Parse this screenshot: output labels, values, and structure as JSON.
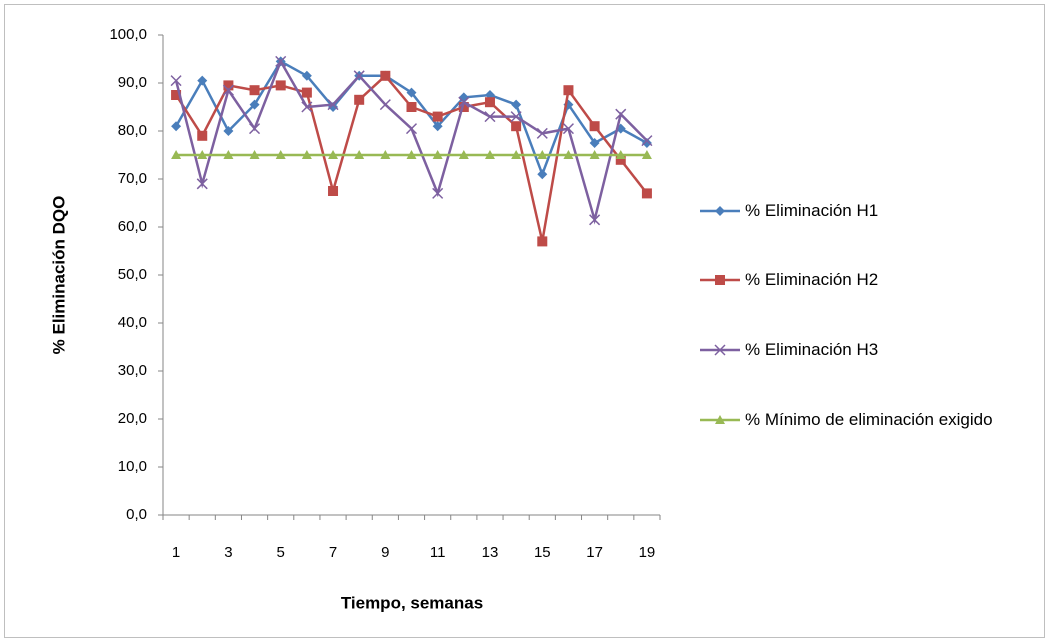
{
  "chart_data": {
    "type": "line",
    "x_label": "Tiempo, semanas",
    "y_label": "% Eliminación DQO",
    "categories": [
      "1",
      null,
      "3",
      null,
      "5",
      null,
      "7",
      null,
      "9",
      null,
      "11",
      null,
      "13",
      null,
      "15",
      null,
      "17",
      null,
      "19"
    ],
    "series": [
      {
        "name": "% Eliminación H1",
        "color": "#4a7ebb",
        "marker": "diamond",
        "values": [
          81,
          90.5,
          80,
          85.5,
          94.5,
          91.5,
          85,
          91.5,
          91.5,
          88,
          81,
          87,
          87.5,
          85.5,
          71,
          85.5,
          77.5,
          80.5,
          77.5
        ]
      },
      {
        "name": "% Eliminación H2",
        "color": "#be4b48",
        "marker": "square",
        "values": [
          87.5,
          79,
          89.5,
          88.5,
          89.5,
          88,
          67.5,
          86.5,
          91.5,
          85,
          83,
          85,
          86,
          81,
          57,
          88.5,
          81,
          74,
          67
        ]
      },
      {
        "name": "% Eliminación H3",
        "color": "#7d60a0",
        "marker": "x",
        "values": [
          90.5,
          69,
          88.5,
          80.5,
          94.5,
          85,
          85.5,
          91.5,
          85.5,
          80.5,
          67,
          86,
          83,
          83,
          79.5,
          80.5,
          61.5,
          83.5,
          78
        ]
      },
      {
        "name": "% Mínimo de eliminación exigido",
        "color": "#98b954",
        "marker": "triangle",
        "values": [
          75,
          75,
          75,
          75,
          75,
          75,
          75,
          75,
          75,
          75,
          75,
          75,
          75,
          75,
          75,
          75,
          75,
          75,
          75
        ]
      }
    ],
    "ylim": [
      0,
      100
    ],
    "yticks": [
      {
        "value": 0,
        "label": "0,0"
      },
      {
        "value": 10,
        "label": "10,0"
      },
      {
        "value": 20,
        "label": "20,0"
      },
      {
        "value": 30,
        "label": "30,0"
      },
      {
        "value": 40,
        "label": "40,0"
      },
      {
        "value": 50,
        "label": "50,0"
      },
      {
        "value": 60,
        "label": "60,0"
      },
      {
        "value": 70,
        "label": "70,0"
      },
      {
        "value": 80,
        "label": "80,0"
      },
      {
        "value": 90,
        "label": "90,0"
      },
      {
        "value": {
          "value": 100,
          "label": "100,0"
        },
        "label": "100,0"
      }
    ],
    "grid": false,
    "legend": "right"
  }
}
